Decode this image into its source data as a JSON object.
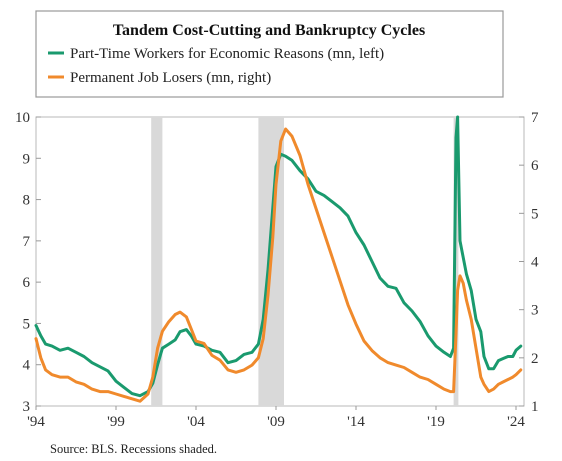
{
  "chart_data": {
    "type": "line",
    "title": "Tandem Cost-Cutting and Bankruptcy Cycles",
    "source": "Source: BLS. Recessions shaded.",
    "x_tick_labels": [
      "'94",
      "'99",
      "'04",
      "'09",
      "'14",
      "'19",
      "'24"
    ],
    "x_tick_years": [
      1994,
      1999,
      2004,
      2009,
      2014,
      2019,
      2024
    ],
    "xlim": [
      1994,
      2024.5
    ],
    "left_axis": {
      "ylim": [
        3,
        10
      ],
      "ticks": [
        "3",
        "4",
        "5",
        "6",
        "7",
        "8",
        "9",
        "10"
      ]
    },
    "right_axis": {
      "ylim": [
        1,
        7
      ],
      "ticks": [
        "1",
        "2",
        "3",
        "4",
        "5",
        "6",
        "7"
      ]
    },
    "recessions": [
      [
        2001.2,
        2001.9
      ],
      [
        2007.9,
        2009.5
      ],
      [
        2020.1,
        2020.4
      ]
    ],
    "grid": false,
    "legend_position": "top",
    "series": [
      {
        "name": "Part-Time Workers for Economic Reasons (mn, left)",
        "axis": "left",
        "color": "#1a9a6e",
        "x": [
          1994,
          1994.3,
          1994.6,
          1995,
          1995.5,
          1996,
          1996.5,
          1997,
          1997.5,
          1998,
          1998.5,
          1999,
          1999.5,
          2000,
          2000.5,
          2001,
          2001.3,
          2001.6,
          2001.9,
          2002.3,
          2002.7,
          2003,
          2003.4,
          2003.7,
          2004,
          2004.5,
          2005,
          2005.5,
          2006,
          2006.5,
          2007,
          2007.5,
          2007.9,
          2008.2,
          2008.5,
          2008.8,
          2009,
          2009.3,
          2009.6,
          2010,
          2010.5,
          2011,
          2011.5,
          2012,
          2012.5,
          2013,
          2013.5,
          2014,
          2014.5,
          2015,
          2015.5,
          2016,
          2016.5,
          2017,
          2017.5,
          2018,
          2018.5,
          2019,
          2019.5,
          2019.9,
          2020.1,
          2020.25,
          2020.35,
          2020.5,
          2020.7,
          2020.9,
          2021.2,
          2021.5,
          2021.8,
          2022,
          2022.3,
          2022.6,
          2022.9,
          2023.2,
          2023.5,
          2023.8,
          2024,
          2024.3
        ],
        "values": [
          4.95,
          4.7,
          4.5,
          4.45,
          4.35,
          4.4,
          4.3,
          4.2,
          4.05,
          3.95,
          3.85,
          3.6,
          3.45,
          3.3,
          3.25,
          3.35,
          3.55,
          4.0,
          4.4,
          4.5,
          4.6,
          4.8,
          4.85,
          4.7,
          4.5,
          4.45,
          4.35,
          4.3,
          4.05,
          4.1,
          4.25,
          4.3,
          4.5,
          5.1,
          6.3,
          7.8,
          8.8,
          9.1,
          9.05,
          8.95,
          8.7,
          8.5,
          8.2,
          8.1,
          7.95,
          7.8,
          7.6,
          7.2,
          6.9,
          6.5,
          6.1,
          5.9,
          5.85,
          5.5,
          5.3,
          5.05,
          4.7,
          4.45,
          4.3,
          4.2,
          4.4,
          9.5,
          10.0,
          7.0,
          6.6,
          6.2,
          5.8,
          5.1,
          4.8,
          4.2,
          3.9,
          3.9,
          4.1,
          4.15,
          4.2,
          4.2,
          4.35,
          4.45
        ]
      },
      {
        "name": "Permanent Job Losers (mn, right)",
        "axis": "right",
        "color": "#f08a2c",
        "x": [
          1994,
          1994.3,
          1994.6,
          1995,
          1995.5,
          1996,
          1996.5,
          1997,
          1997.5,
          1998,
          1998.5,
          1999,
          1999.5,
          2000,
          2000.5,
          2001,
          2001.3,
          2001.6,
          2001.9,
          2002.3,
          2002.7,
          2003,
          2003.4,
          2003.7,
          2004,
          2004.5,
          2005,
          2005.5,
          2006,
          2006.5,
          2007,
          2007.5,
          2007.9,
          2008.2,
          2008.5,
          2008.8,
          2009,
          2009.3,
          2009.6,
          2010,
          2010.5,
          2011,
          2011.5,
          2012,
          2012.5,
          2013,
          2013.5,
          2014,
          2014.5,
          2015,
          2015.5,
          2016,
          2016.5,
          2017,
          2017.5,
          2018,
          2018.5,
          2019,
          2019.5,
          2019.9,
          2020.1,
          2020.25,
          2020.35,
          2020.5,
          2020.7,
          2020.9,
          2021.2,
          2021.5,
          2021.8,
          2022,
          2022.3,
          2022.6,
          2022.9,
          2023.2,
          2023.5,
          2023.8,
          2024,
          2024.3
        ],
        "values": [
          2.4,
          2.0,
          1.75,
          1.65,
          1.6,
          1.6,
          1.5,
          1.45,
          1.35,
          1.3,
          1.3,
          1.25,
          1.2,
          1.15,
          1.1,
          1.25,
          1.6,
          2.2,
          2.55,
          2.75,
          2.9,
          2.95,
          2.85,
          2.6,
          2.35,
          2.3,
          2.05,
          1.95,
          1.75,
          1.7,
          1.75,
          1.85,
          2.0,
          2.4,
          3.3,
          4.5,
          5.6,
          6.5,
          6.75,
          6.6,
          6.2,
          5.6,
          5.1,
          4.6,
          4.1,
          3.6,
          3.1,
          2.7,
          2.35,
          2.15,
          2.0,
          1.9,
          1.85,
          1.8,
          1.7,
          1.6,
          1.55,
          1.45,
          1.35,
          1.3,
          1.3,
          2.5,
          3.4,
          3.7,
          3.55,
          3.2,
          2.8,
          2.2,
          1.6,
          1.45,
          1.3,
          1.35,
          1.45,
          1.5,
          1.55,
          1.6,
          1.65,
          1.75
        ]
      }
    ]
  }
}
